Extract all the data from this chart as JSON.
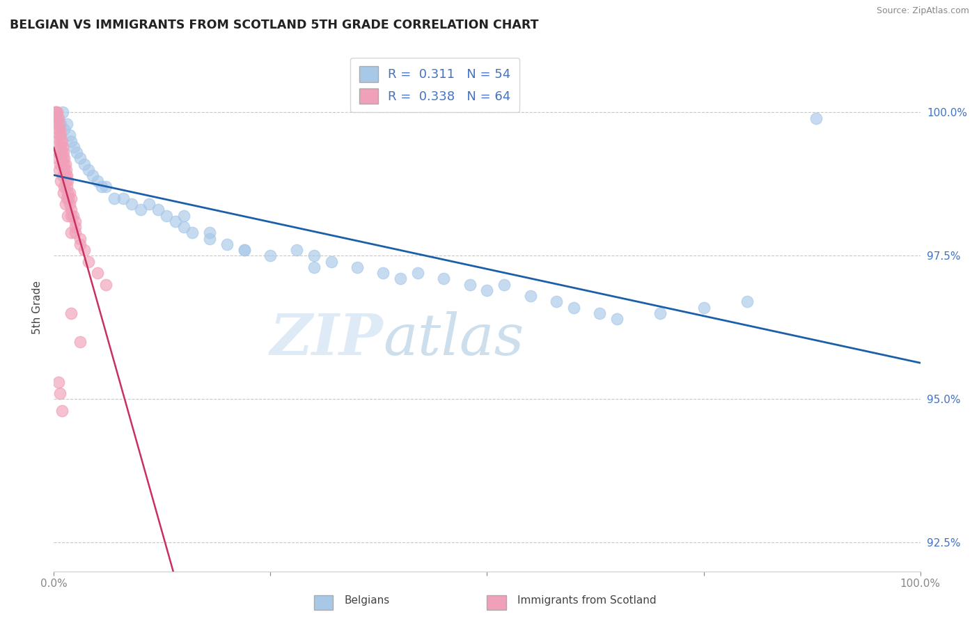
{
  "title": "BELGIAN VS IMMIGRANTS FROM SCOTLAND 5TH GRADE CORRELATION CHART",
  "source": "Source: ZipAtlas.com",
  "ylabel": "5th Grade",
  "xlim": [
    0,
    100
  ],
  "ylim": [
    92.0,
    101.2
  ],
  "yticks": [
    92.5,
    95.0,
    97.5,
    100.0
  ],
  "ytick_labels": [
    "92.5%",
    "95.0%",
    "97.5%",
    "100.0%"
  ],
  "xticks": [
    0,
    25,
    50,
    75,
    100
  ],
  "xtick_labels": [
    "0.0%",
    "",
    "",
    "",
    "100.0%"
  ],
  "blue_color": "#a8c8e8",
  "pink_color": "#f0a0b8",
  "blue_line_color": "#1a5fa8",
  "pink_line_color": "#c83060",
  "legend_R_blue": "0.311",
  "legend_N_blue": "54",
  "legend_R_pink": "0.338",
  "legend_N_pink": "64",
  "blue_x": [
    0.5,
    0.8,
    1.0,
    1.2,
    1.5,
    1.8,
    2.0,
    2.3,
    2.6,
    3.0,
    3.5,
    4.0,
    4.5,
    5.0,
    5.5,
    6.0,
    7.0,
    8.0,
    9.0,
    10.0,
    11.0,
    12.0,
    13.0,
    14.0,
    15.0,
    16.0,
    18.0,
    20.0,
    22.0,
    25.0,
    28.0,
    30.0,
    32.0,
    35.0,
    38.0,
    40.0,
    42.0,
    45.0,
    48.0,
    50.0,
    52.0,
    55.0,
    58.0,
    60.0,
    63.0,
    65.0,
    70.0,
    75.0,
    80.0,
    88.0,
    15.0,
    18.0,
    22.0,
    30.0
  ],
  "blue_y": [
    99.9,
    99.8,
    100.0,
    99.7,
    99.8,
    99.6,
    99.5,
    99.4,
    99.3,
    99.2,
    99.1,
    99.0,
    98.9,
    98.8,
    98.7,
    98.7,
    98.5,
    98.5,
    98.4,
    98.3,
    98.4,
    98.3,
    98.2,
    98.1,
    98.0,
    97.9,
    97.8,
    97.7,
    97.6,
    97.5,
    97.6,
    97.5,
    97.4,
    97.3,
    97.2,
    97.1,
    97.2,
    97.1,
    97.0,
    96.9,
    97.0,
    96.8,
    96.7,
    96.6,
    96.5,
    96.4,
    96.5,
    96.6,
    96.7,
    99.9,
    98.2,
    97.9,
    97.6,
    97.3
  ],
  "pink_x": [
    0.1,
    0.2,
    0.3,
    0.3,
    0.4,
    0.4,
    0.5,
    0.5,
    0.6,
    0.6,
    0.7,
    0.7,
    0.8,
    0.8,
    0.9,
    0.9,
    1.0,
    1.0,
    1.1,
    1.1,
    1.2,
    1.2,
    1.3,
    1.3,
    1.4,
    1.4,
    1.5,
    1.5,
    1.6,
    1.6,
    1.7,
    1.8,
    1.8,
    2.0,
    2.0,
    2.2,
    2.5,
    2.5,
    3.0,
    3.5,
    4.0,
    5.0,
    6.0,
    0.3,
    0.5,
    0.7,
    1.0,
    1.2,
    1.5,
    2.0,
    2.5,
    3.0,
    0.4,
    0.6,
    0.8,
    1.1,
    1.3,
    1.6,
    2.0,
    0.5,
    0.7,
    0.9,
    2.0,
    3.0
  ],
  "pink_y": [
    100.0,
    100.0,
    100.0,
    99.9,
    100.0,
    99.8,
    99.9,
    99.7,
    99.8,
    99.6,
    99.7,
    99.5,
    99.6,
    99.4,
    99.5,
    99.3,
    99.4,
    99.2,
    99.3,
    99.1,
    99.2,
    99.0,
    99.1,
    98.9,
    99.0,
    98.8,
    98.9,
    98.7,
    98.8,
    98.6,
    98.5,
    98.4,
    98.6,
    98.3,
    98.5,
    98.2,
    98.0,
    98.1,
    97.8,
    97.6,
    97.4,
    97.2,
    97.0,
    99.5,
    99.3,
    99.1,
    98.9,
    98.7,
    98.5,
    98.2,
    97.9,
    97.7,
    99.2,
    99.0,
    98.8,
    98.6,
    98.4,
    98.2,
    97.9,
    95.3,
    95.1,
    94.8,
    96.5,
    96.0
  ],
  "watermark_zip": "ZIP",
  "watermark_atlas": "atlas",
  "background_color": "#ffffff",
  "grid_color": "#c8c8c8"
}
